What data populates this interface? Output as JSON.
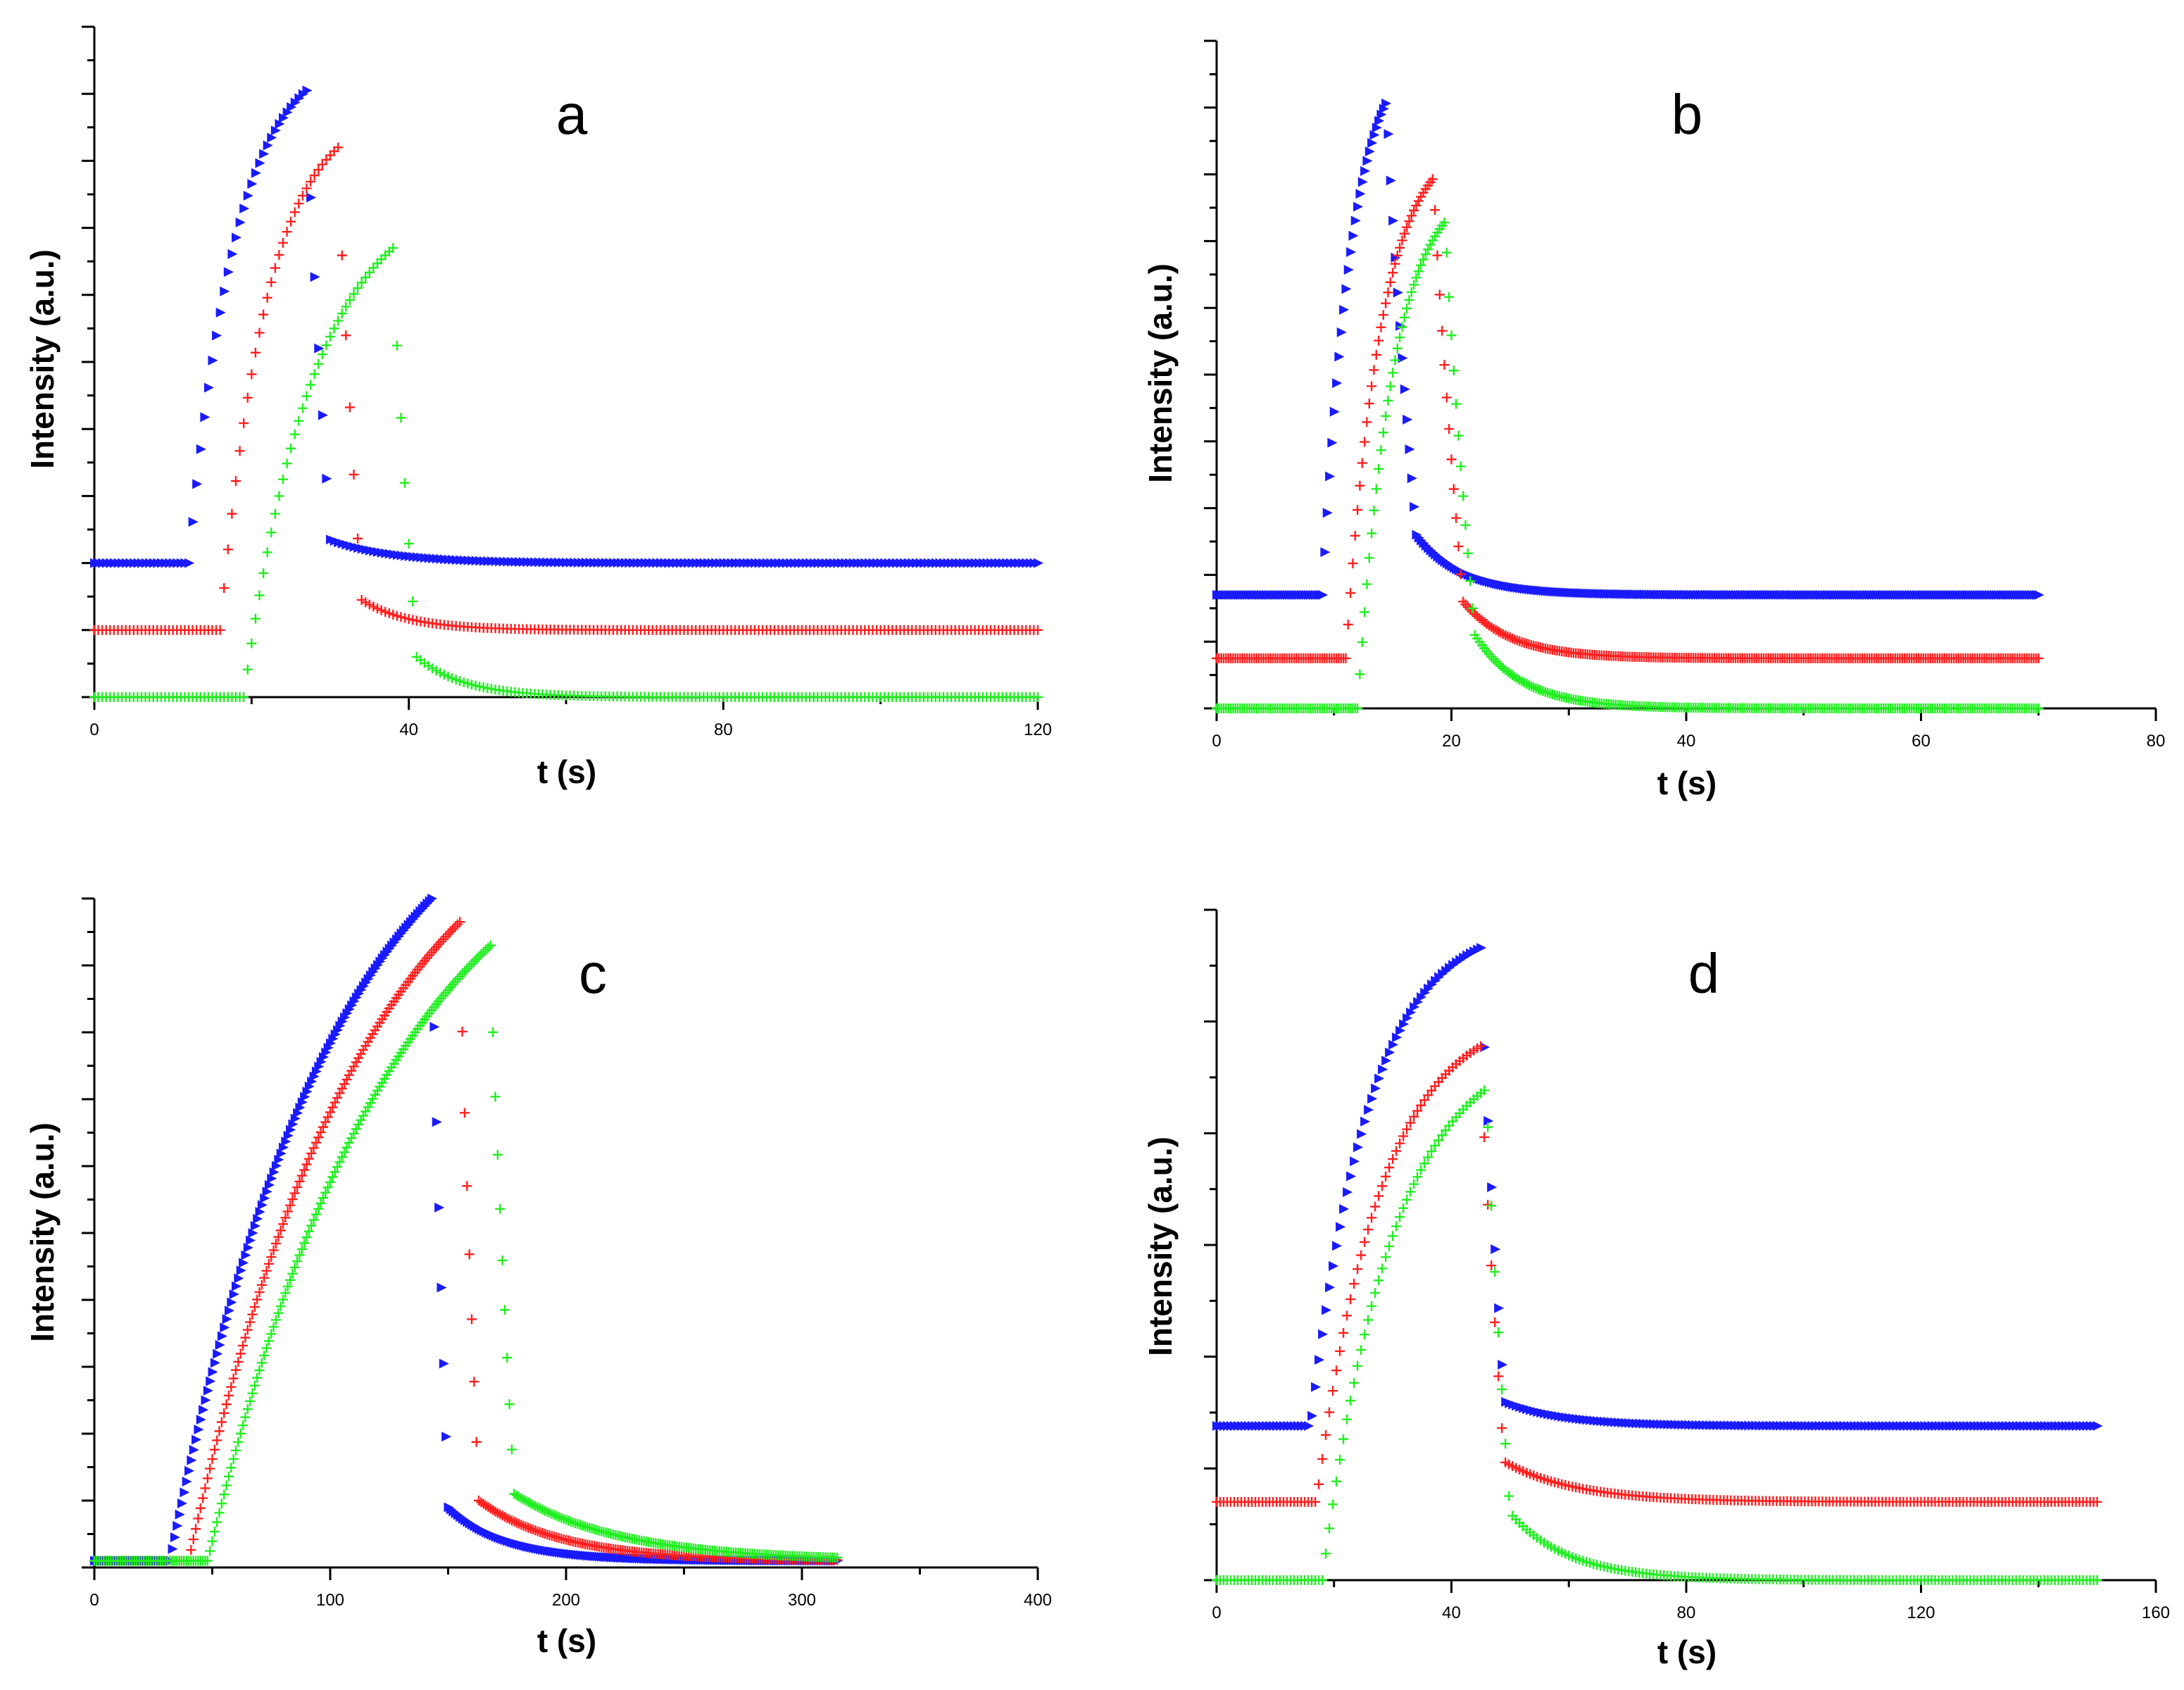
{
  "figure": {
    "series_names": [
      "blue",
      "red",
      "green"
    ]
  },
  "chart_data": [
    {
      "type": "scatter",
      "panel": "a",
      "title": "a",
      "xlabel": "t (s)",
      "ylabel": "Intensity (a.u.)",
      "xlim": [
        0,
        120
      ],
      "ylim": [
        0,
        10
      ],
      "xticks": [
        0,
        40,
        80,
        120
      ],
      "yticks_count": 21,
      "grid": false,
      "series": [
        {
          "name": "blue",
          "color": "#1a1aff",
          "marker": "triangle-right",
          "baseline": 2.0,
          "rise_start": 12,
          "peak_t": 27,
          "peak": 9.05,
          "tau": 6,
          "drop_end": 30,
          "residual": 0.35,
          "tail_tau": 8,
          "t_end": 120,
          "dt": 0.5
        },
        {
          "name": "red",
          "color": "#ff2020",
          "marker": "plus",
          "baseline": 1.0,
          "rise_start": 16,
          "peak_t": 31,
          "peak": 8.2,
          "tau": 6,
          "drop_end": 34,
          "residual": 0.45,
          "tail_tau": 6,
          "t_end": 120,
          "dt": 0.5
        },
        {
          "name": "green",
          "color": "#22ee22",
          "marker": "plus",
          "baseline": 0.0,
          "rise_start": 19,
          "peak_t": 38,
          "peak": 6.7,
          "tau": 9,
          "drop_end": 41,
          "residual": 0.6,
          "tail_tau": 6,
          "t_end": 120,
          "dt": 0.5
        }
      ]
    },
    {
      "type": "scatter",
      "panel": "b",
      "title": "b",
      "xlabel": "t (s)",
      "ylabel": "Intensity (a.u.)",
      "xlim": [
        0,
        80
      ],
      "ylim": [
        0,
        10
      ],
      "xticks": [
        0,
        20,
        40,
        60,
        80
      ],
      "yticks_count": 21,
      "grid": false,
      "series": [
        {
          "name": "blue",
          "color": "#1a1aff",
          "marker": "triangle-right",
          "baseline": 1.7,
          "rise_start": 9,
          "peak_t": 14.5,
          "peak": 9.1,
          "tau": 2.5,
          "drop_end": 17,
          "residual": 0.9,
          "tail_tau": 4,
          "t_end": 70,
          "dt": 0.2
        },
        {
          "name": "red",
          "color": "#ff2020",
          "marker": "plus",
          "baseline": 0.75,
          "rise_start": 11,
          "peak_t": 18.5,
          "peak": 7.95,
          "tau": 3,
          "drop_end": 21,
          "residual": 0.85,
          "tail_tau": 4,
          "t_end": 70,
          "dt": 0.2
        },
        {
          "name": "green",
          "color": "#22ee22",
          "marker": "plus",
          "baseline": 0.0,
          "rise_start": 12,
          "peak_t": 19.5,
          "peak": 7.3,
          "tau": 3,
          "drop_end": 22,
          "residual": 1.1,
          "tail_tau": 4,
          "t_end": 70,
          "dt": 0.2
        }
      ]
    },
    {
      "type": "scatter",
      "panel": "c",
      "title": "c",
      "xlabel": "t (s)",
      "ylabel": "Intensity (a.u.)",
      "xlim": [
        0,
        400
      ],
      "ylim": [
        0,
        10
      ],
      "xticks": [
        0,
        100,
        200,
        300,
        400
      ],
      "yticks_count": 21,
      "grid": false,
      "series": [
        {
          "name": "blue",
          "color": "#1a1aff",
          "marker": "triangle-right",
          "baseline": 0.1,
          "rise_start": 32,
          "peak_t": 143,
          "peak": 10.0,
          "tau": 70,
          "drop_end": 150,
          "residual": 0.8,
          "tail_tau": 25,
          "t_end": 315,
          "dt": 1
        },
        {
          "name": "red",
          "color": "#ff2020",
          "marker": "plus",
          "baseline": 0.1,
          "rise_start": 40,
          "peak_t": 155,
          "peak": 9.65,
          "tau": 75,
          "drop_end": 163,
          "residual": 0.9,
          "tail_tau": 35,
          "t_end": 315,
          "dt": 1
        },
        {
          "name": "green",
          "color": "#22ee22",
          "marker": "plus",
          "baseline": 0.1,
          "rise_start": 48,
          "peak_t": 168,
          "peak": 9.3,
          "tau": 80,
          "drop_end": 178,
          "residual": 1.0,
          "tail_tau": 45,
          "t_end": 315,
          "dt": 1
        }
      ]
    },
    {
      "type": "scatter",
      "panel": "d",
      "title": "d",
      "xlabel": "t (s)",
      "ylabel": "Intensity (a.u.)",
      "xlim": [
        0,
        160
      ],
      "ylim": [
        0,
        15
      ],
      "xticks": [
        0,
        40,
        80,
        120,
        160
      ],
      "yticks_count": 13,
      "grid": false,
      "series": [
        {
          "name": "blue",
          "color": "#1a1aff",
          "marker": "triangle-right",
          "baseline": 3.45,
          "rise_start": 16,
          "peak_t": 45,
          "peak": 14.15,
          "tau": 10,
          "drop_end": 49,
          "residual": 0.55,
          "tail_tau": 10,
          "t_end": 150,
          "dt": 0.6
        },
        {
          "name": "red",
          "color": "#ff2020",
          "marker": "plus",
          "baseline": 1.75,
          "rise_start": 17,
          "peak_t": 45,
          "peak": 11.95,
          "tau": 11,
          "drop_end": 49,
          "residual": 0.9,
          "tail_tau": 12,
          "t_end": 150,
          "dt": 0.6
        },
        {
          "name": "green",
          "color": "#22ee22",
          "marker": "plus",
          "baseline": 0.0,
          "rise_start": 18,
          "peak_t": 46,
          "peak": 11.0,
          "tau": 12,
          "drop_end": 50,
          "residual": 1.5,
          "tail_tau": 10,
          "t_end": 150,
          "dt": 0.6
        }
      ]
    }
  ]
}
